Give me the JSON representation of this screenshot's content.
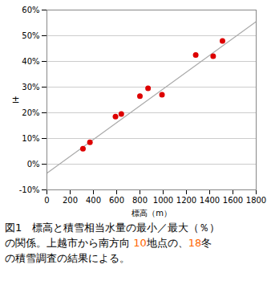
{
  "chart_data": {
    "type": "scatter",
    "xlabel": "標高（m）",
    "ylabel": "±",
    "series": [
      {
        "type": "scatter",
        "color": "#dd0000",
        "x": [
          310,
          370,
          590,
          640,
          800,
          870,
          990,
          1280,
          1430,
          1510
        ],
        "values": [
          6.0,
          8.5,
          18.5,
          19.5,
          26.5,
          29.5,
          27.0,
          42.5,
          42.0,
          48.0
        ]
      },
      {
        "type": "line",
        "color": "#aaaaaa",
        "x": [
          0,
          1800
        ],
        "values": [
          -3.5,
          55.5
        ]
      }
    ],
    "xlim": [
      0,
      1800
    ],
    "xticks": [
      0,
      200,
      400,
      600,
      800,
      1000,
      1200,
      1400,
      1600,
      1800
    ],
    "ylim": [
      -10,
      60
    ],
    "yticks": [
      {
        "value": -10,
        "label": "-10%"
      },
      {
        "value": 0,
        "label": "0%"
      },
      {
        "value": 10,
        "label": "10%"
      },
      {
        "value": 20,
        "label": "20%"
      },
      {
        "value": 30,
        "label": "30%"
      },
      {
        "value": 40,
        "label": "40%"
      },
      {
        "value": 50,
        "label": "50%"
      },
      {
        "value": 60,
        "label": "60%"
      }
    ],
    "grid": "y",
    "caption": [
      [
        {
          "text": "図1　標高と積雪相当水量の最小／最大（％）",
          "color": "#000000"
        }
      ],
      [
        {
          "text": "の関係。上越市から南方向 ",
          "color": "#000000"
        },
        {
          "text": "10",
          "color": "#ff6600"
        },
        {
          "text": "地点の、",
          "color": "#000000"
        },
        {
          "text": "18",
          "color": "#ff6600"
        },
        {
          "text": "冬",
          "color": "#000000"
        }
      ],
      [
        {
          "text": "の積雪調査の結果による。",
          "color": "#000000"
        }
      ]
    ]
  }
}
